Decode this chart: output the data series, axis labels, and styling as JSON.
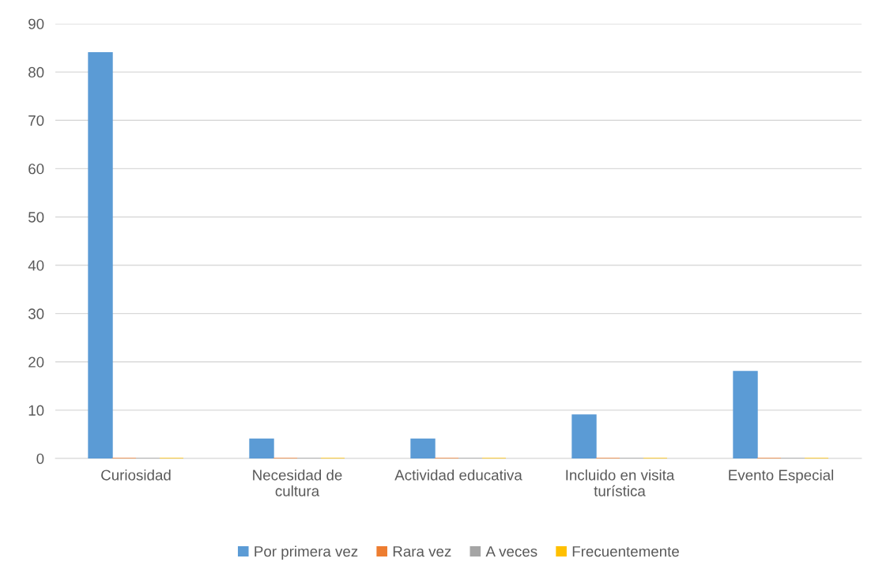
{
  "chart_data": {
    "type": "bar",
    "categories": [
      "Curiosidad",
      "Necesidad de\ncultura",
      "Actividad educativa",
      "Incluido en visita\nturística",
      "Evento Especial"
    ],
    "series": [
      {
        "name": "Por primera vez",
        "color": "#5b9bd5",
        "values": [
          84,
          4,
          4,
          9,
          18
        ]
      },
      {
        "name": "Rara vez",
        "color": "#ed7d31",
        "values": [
          0,
          0,
          0,
          0,
          0
        ]
      },
      {
        "name": "A veces",
        "color": "#a5a5a5",
        "values": [
          0,
          0,
          0,
          0,
          0
        ]
      },
      {
        "name": "Frecuentemente",
        "color": "#ffc000",
        "values": [
          0,
          0,
          0,
          0,
          0
        ]
      }
    ],
    "ylim": [
      0,
      90
    ],
    "yticks": [
      0,
      10,
      20,
      30,
      40,
      50,
      60,
      70,
      80,
      90
    ],
    "grid": "y",
    "legend": "bottom"
  }
}
